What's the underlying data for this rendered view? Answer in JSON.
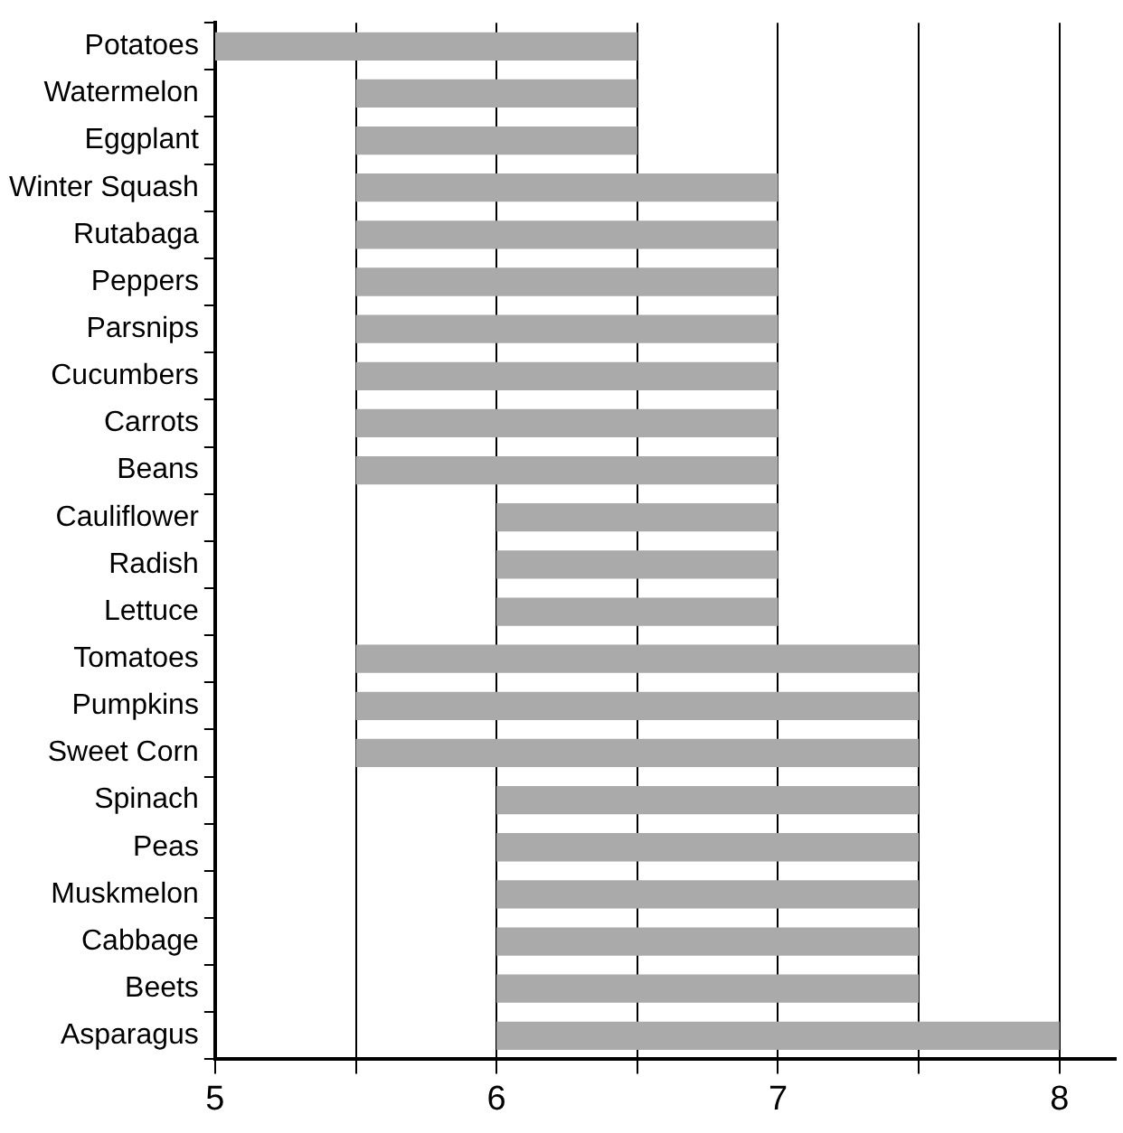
{
  "chart_data": {
    "type": "bar",
    "orientation": "horizontal",
    "categories": [
      "Potatoes",
      "Watermelon",
      "Eggplant",
      "Winter Squash",
      "Rutabaga",
      "Peppers",
      "Parsnips",
      "Cucumbers",
      "Carrots",
      "Beans",
      "Cauliflower",
      "Radish",
      "Lettuce",
      "Tomatoes",
      "Pumpkins",
      "Sweet Corn",
      "Spinach",
      "Peas",
      "Muskmelon",
      "Cabbage",
      "Beets",
      "Asparagus"
    ],
    "base": [
      5,
      5.5,
      5.5,
      5.5,
      5.5,
      5.5,
      5.5,
      5.5,
      5.5,
      5.5,
      6,
      6,
      6,
      5.5,
      5.5,
      5.5,
      6,
      6,
      6,
      6,
      6,
      6
    ],
    "values": [
      1.5,
      1,
      1,
      1.5,
      1.5,
      1.5,
      1.5,
      1.5,
      1.5,
      1.5,
      1,
      1,
      1,
      2,
      2,
      2,
      1.5,
      1.5,
      1.5,
      1.5,
      1.5,
      2
    ],
    "color": "#aaaaaa",
    "xlim": [
      5,
      8.2
    ],
    "xticks": [
      5,
      {
        "value": 5.5,
        "label": null
      },
      6,
      {
        "value": 6.5,
        "label": null
      },
      7,
      {
        "value": 7.5,
        "label": null
      },
      8
    ],
    "grid": "x",
    "legend": false
  }
}
